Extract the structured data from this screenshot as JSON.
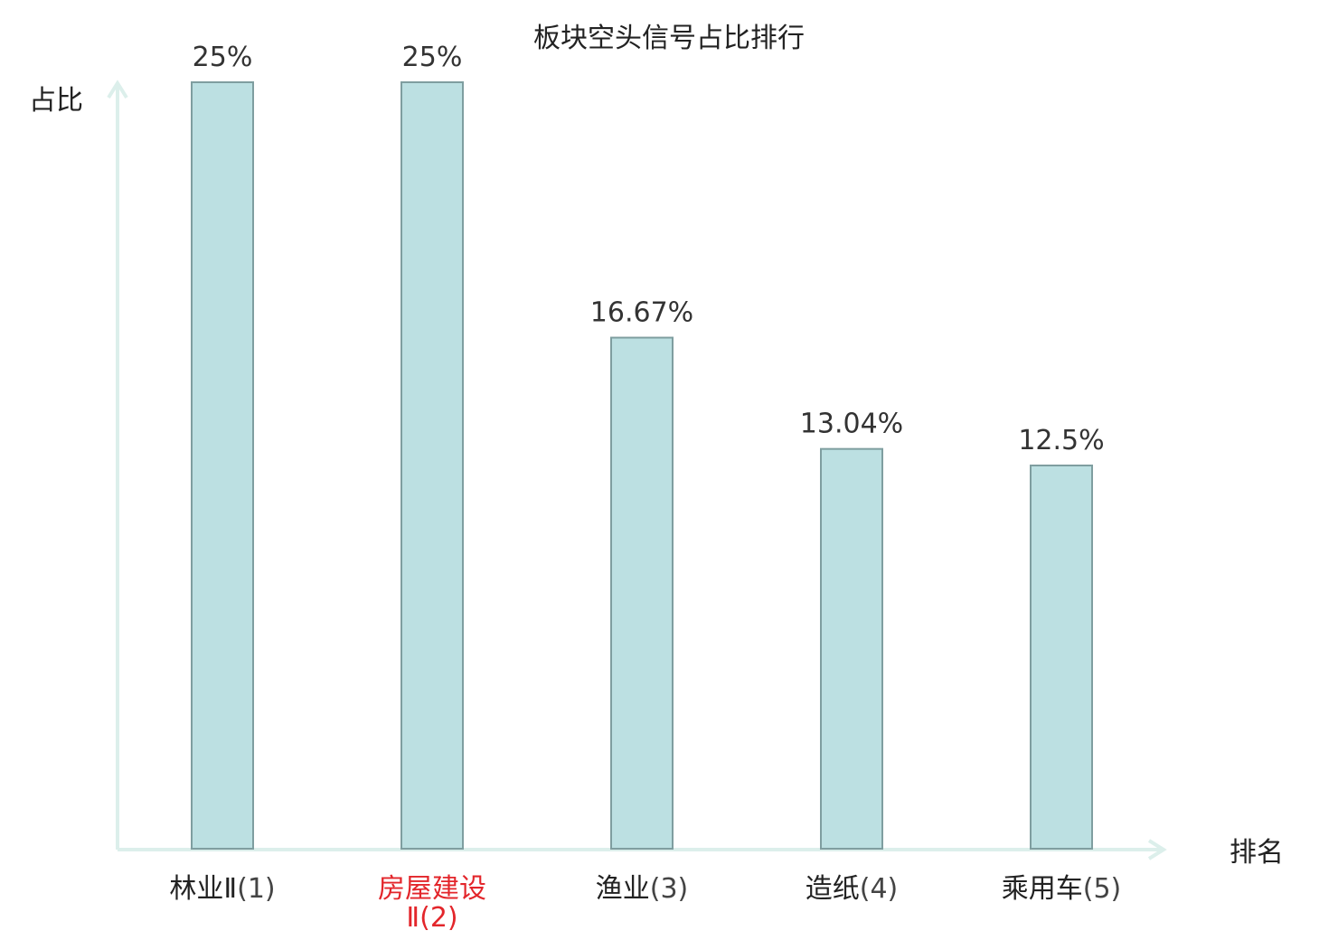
{
  "chart_data": {
    "type": "bar",
    "title": "板块空头信号占比排行",
    "ylabel": "占比",
    "xlabel": "排名",
    "ylim": [
      0,
      25
    ],
    "grid": false,
    "categories": [
      {
        "name": "林业Ⅱ",
        "rank": "(1)",
        "highlight": false
      },
      {
        "name": "房屋建设",
        "rank": "Ⅱ(2)",
        "highlight": true
      },
      {
        "name": "渔业",
        "rank": "(3)",
        "highlight": false
      },
      {
        "name": "造纸",
        "rank": "(4)",
        "highlight": false
      },
      {
        "name": "乘用车",
        "rank": "(5)",
        "highlight": false
      }
    ],
    "values": [
      25,
      25,
      16.67,
      13.04,
      12.5
    ],
    "value_labels": [
      "25%",
      "25%",
      "16.67%",
      "13.04%",
      "12.5%"
    ],
    "colors": {
      "bar_fill": "#bce0e2",
      "bar_stroke": "#7f9ea0",
      "axis": "#dcefeb",
      "highlight_text": "#e3262b"
    }
  }
}
